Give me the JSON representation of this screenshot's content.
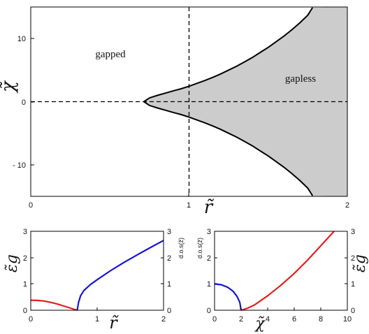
{
  "chart_data": [
    {
      "type": "area",
      "xlim": [
        0,
        2
      ],
      "ylim": [
        -15,
        15
      ],
      "xticks": [
        "0",
        "1",
        "2"
      ],
      "yticks": [
        "10",
        "0",
        "- 10"
      ],
      "ytick_values": [
        10,
        0,
        -10
      ],
      "xlabel": "r̃",
      "ylabel": "χ̃",
      "annotations": [
        {
          "text": "gapped",
          "x": 0.5,
          "y": 7.7
        },
        {
          "text": "gapless",
          "x": 1.64,
          "y": 3.8
        }
      ],
      "dashed_lines": [
        {
          "axis": "x",
          "value": 1
        },
        {
          "axis": "y",
          "value": 0
        }
      ],
      "series": [
        {
          "x": [
            0.715,
            0.75,
            0.8,
            0.85,
            0.9,
            0.95,
            1.0,
            1.05,
            1.1,
            1.15,
            1.2,
            1.25,
            1.3,
            1.35,
            1.4,
            1.45,
            1.5,
            1.55,
            1.6,
            1.65,
            1.7,
            1.75,
            1.78
          ],
          "upper": [
            0.0,
            0.6,
            1.0,
            1.35,
            1.7,
            2.05,
            2.45,
            2.9,
            3.35,
            3.85,
            4.4,
            5.0,
            5.6,
            6.3,
            7.0,
            7.8,
            8.6,
            9.5,
            10.4,
            11.4,
            12.5,
            13.7,
            14.9
          ],
          "lower": [
            0.0,
            -0.6,
            -1.0,
            -1.35,
            -1.7,
            -2.05,
            -2.45,
            -2.9,
            -3.35,
            -3.85,
            -4.4,
            -5.0,
            -5.6,
            -6.3,
            -7.0,
            -7.8,
            -8.6,
            -9.5,
            -10.4,
            -11.4,
            -12.5,
            -13.7,
            -14.9
          ],
          "fill_color": "#cccccc",
          "line_color": "#000000"
        }
      ]
    },
    {
      "type": "line",
      "xlim": [
        0,
        2
      ],
      "ylim": [
        0,
        3
      ],
      "xticks": [
        "0",
        "1",
        "2"
      ],
      "yticks_left": [
        "0",
        "1",
        "2",
        "3"
      ],
      "yticks_right": [
        "0",
        "1",
        "2",
        "3"
      ],
      "xlabel": "r̃",
      "ylabel_left": "ε̃g",
      "ylabel_right": "d.o.s(ž)",
      "series": [
        {
          "color": "#e0201b",
          "x": [
            0,
            0.1,
            0.2,
            0.3,
            0.4,
            0.5,
            0.6,
            0.7
          ],
          "y": [
            0.38,
            0.375,
            0.35,
            0.3,
            0.235,
            0.16,
            0.08,
            0.0
          ]
        },
        {
          "color": "#1515d8",
          "x": [
            0.7,
            0.72,
            0.75,
            0.8,
            0.9,
            1.0,
            1.2,
            1.4,
            1.6,
            1.8,
            2.0
          ],
          "y": [
            0.0,
            0.3,
            0.55,
            0.75,
            0.98,
            1.16,
            1.5,
            1.81,
            2.1,
            2.38,
            2.65
          ]
        }
      ]
    },
    {
      "type": "line",
      "xlim": [
        0,
        10
      ],
      "ylim": [
        0,
        3
      ],
      "xticks": [
        "0",
        "2",
        "4",
        "6",
        "8",
        "10"
      ],
      "yticks_left": [
        "0",
        "1",
        "2",
        "3"
      ],
      "yticks_right": [
        "0",
        "1",
        "2",
        "3"
      ],
      "xlabel": "χ̃",
      "ylabel_left": "d.o.s(ž)",
      "ylabel_right": "ε̃g",
      "series": [
        {
          "color": "#1515d8",
          "x": [
            0,
            0.5,
            1.0,
            1.4,
            1.7,
            1.9,
            2.0
          ],
          "y": [
            1.0,
            0.97,
            0.87,
            0.72,
            0.52,
            0.3,
            0.0
          ]
        },
        {
          "color": "#e0201b",
          "x": [
            2.0,
            2.5,
            3.0,
            4.0,
            5.0,
            6.0,
            7.0,
            8.0,
            9.0
          ],
          "y": [
            0.0,
            0.08,
            0.2,
            0.55,
            0.95,
            1.4,
            1.9,
            2.45,
            3.0
          ]
        }
      ]
    }
  ]
}
